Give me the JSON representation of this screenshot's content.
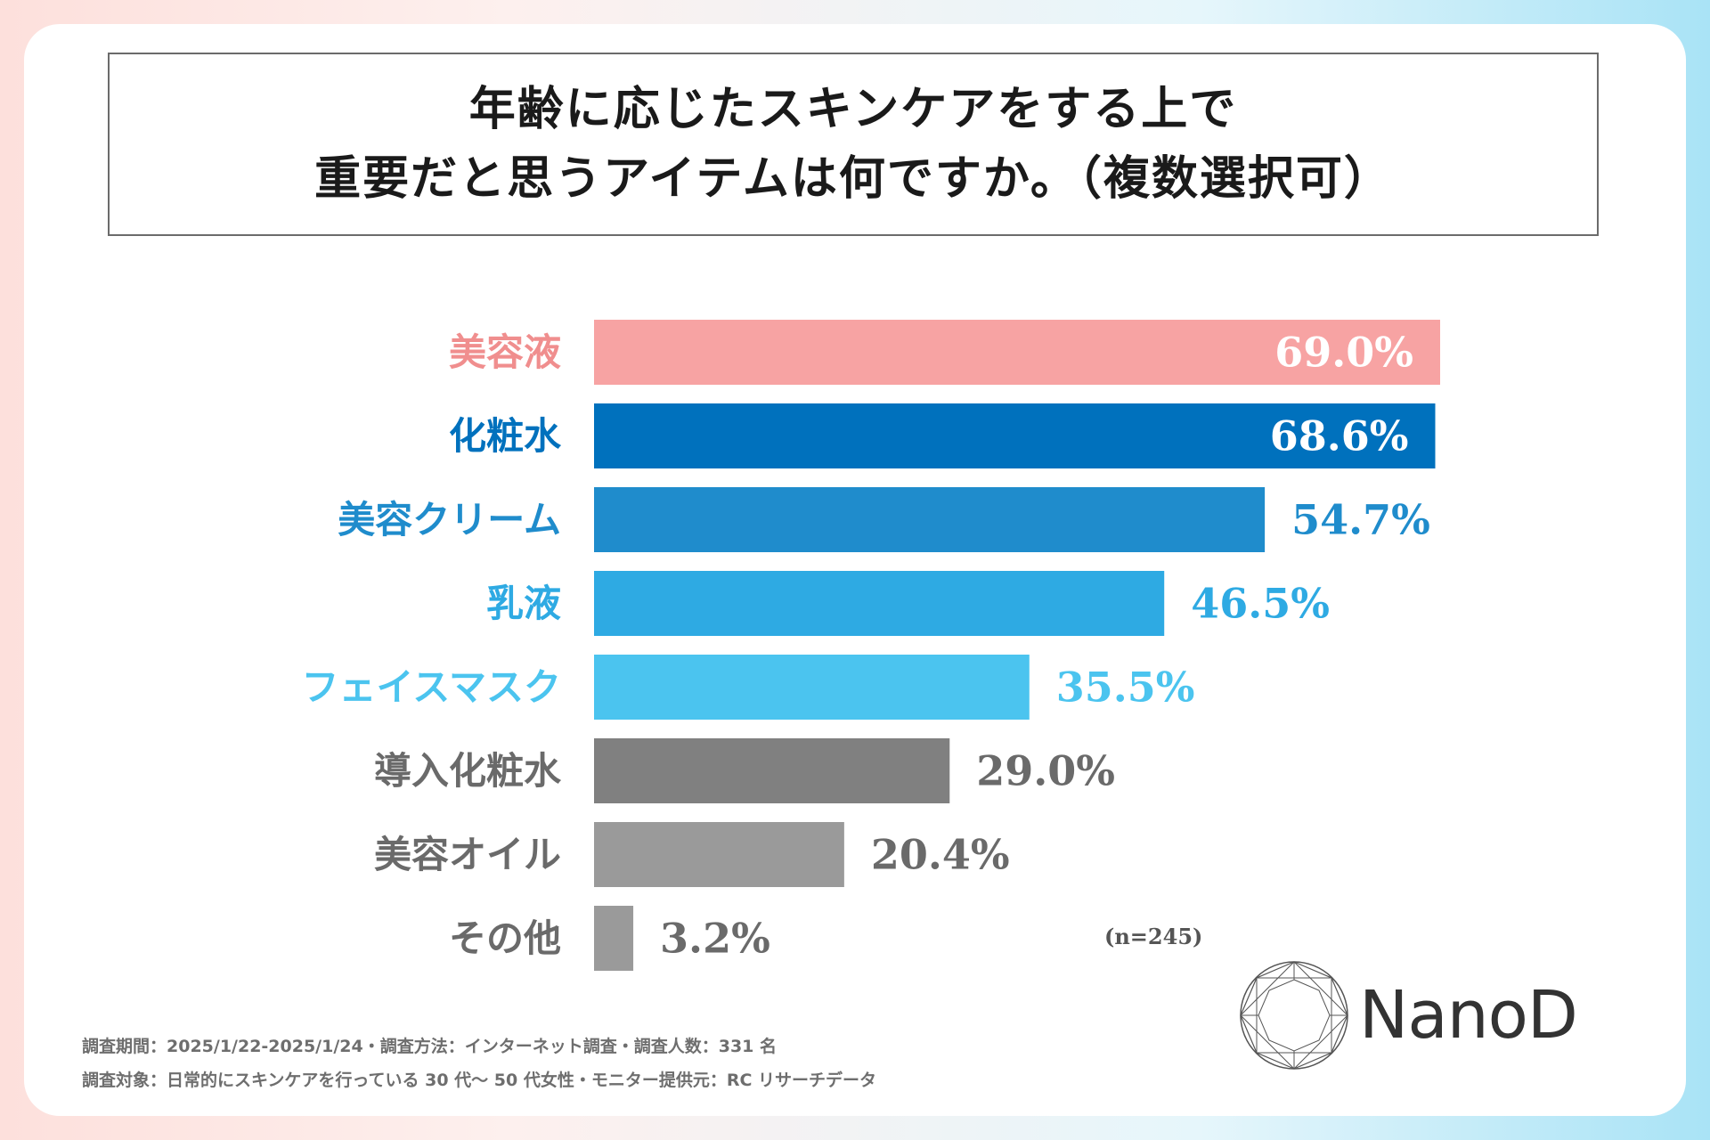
{
  "title": {
    "line1": "年齢に応じたスキンケアをする上で",
    "line2": "重要だと思うアイテムは何ですか。（複数選択可）"
  },
  "chart_data": {
    "type": "bar",
    "orientation": "horizontal",
    "title": "年齢に応じたスキンケアをする上で重要だと思うアイテムは何ですか。（複数選択可）",
    "categories": [
      "美容液",
      "化粧水",
      "美容クリーム",
      "乳液",
      "フェイスマスク",
      "導入化粧水",
      "美容オイル",
      "その他"
    ],
    "values": [
      69.0,
      68.6,
      54.7,
      46.5,
      35.5,
      29.0,
      20.4,
      3.2
    ],
    "value_labels": [
      "69.0%",
      "68.6%",
      "54.7%",
      "46.5%",
      "35.5%",
      "29.0%",
      "20.4%",
      "3.2%"
    ],
    "unit": "%",
    "xlim": [
      0,
      69.0
    ],
    "grid": false,
    "bar_colors": [
      "#f7a3a3",
      "#0071bd",
      "#1f8ccc",
      "#2eaae3",
      "#4bc4ef",
      "#808080",
      "#9a9a9a",
      "#9a9a9a"
    ],
    "label_colors": [
      "#f08e8e",
      "#0071bd",
      "#1f8ccc",
      "#2eaae3",
      "#4bc4ef",
      "#6a6a6a",
      "#6a6a6a",
      "#6a6a6a"
    ],
    "value_label_colors": [
      "#ffffff",
      "#ffffff",
      "#1f8ccc",
      "#2eaae3",
      "#4bc4ef",
      "#6a6a6a",
      "#6a6a6a",
      "#6a6a6a"
    ],
    "value_label_inside": [
      true,
      true,
      false,
      false,
      false,
      false,
      false,
      false
    ]
  },
  "sample_size": "(n=245)",
  "footnotes": {
    "line1": "調査期間：2025/1/22-2025/1/24・調査方法：インターネット調査・調査人数：331 名",
    "line2": "調査対象：日常的にスキンケアを行っている 30 代〜 50 代女性・モニター提供元：RC リサーチデータ"
  },
  "logo": {
    "text": "NanoD",
    "icon": "diamond-circle-logo-icon"
  }
}
